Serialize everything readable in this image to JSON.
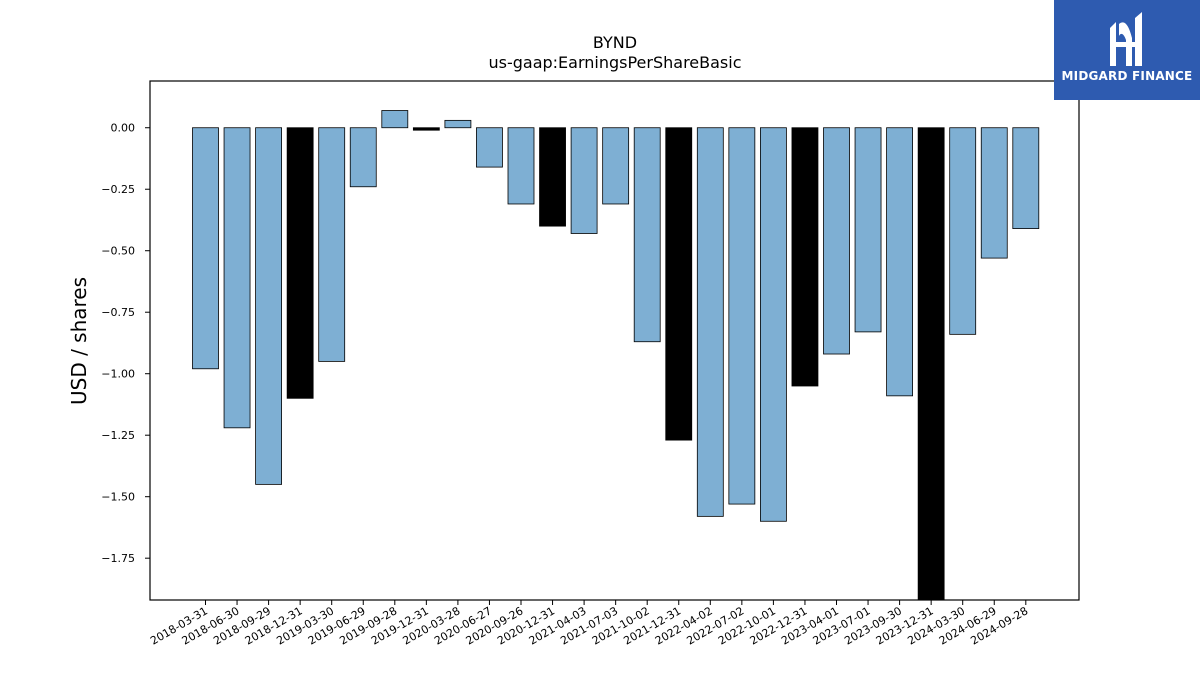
{
  "chart_data": {
    "type": "bar",
    "title": "BYND",
    "subtitle": "us-gaap:EarningsPerShareBasic",
    "xlabel": "",
    "ylabel": "USD / shares",
    "ylim": [
      -1.92,
      0.19
    ],
    "yticks": [
      0.0,
      -0.25,
      -0.5,
      -0.75,
      -1.0,
      -1.25,
      -1.5,
      -1.75
    ],
    "ytick_labels": [
      "0.00",
      "−0.25",
      "−0.50",
      "−0.75",
      "−1.00",
      "−1.25",
      "−1.50",
      "−1.75"
    ],
    "grid": false,
    "colors": {
      "quarter": "#7eafd3",
      "year_end": "#000000",
      "edge": "#000000"
    },
    "categories": [
      "2018-03-31",
      "2018-06-30",
      "2018-09-29",
      "2018-12-31",
      "2019-03-30",
      "2019-06-29",
      "2019-09-28",
      "2019-12-31",
      "2020-03-28",
      "2020-06-27",
      "2020-09-26",
      "2020-12-31",
      "2021-04-03",
      "2021-07-03",
      "2021-10-02",
      "2021-12-31",
      "2022-04-02",
      "2022-07-02",
      "2022-10-01",
      "2022-12-31",
      "2023-04-01",
      "2023-07-01",
      "2023-09-30",
      "2023-12-31",
      "2024-03-30",
      "2024-06-29",
      "2024-09-28"
    ],
    "values": [
      -0.98,
      -1.22,
      -1.45,
      -1.1,
      -0.95,
      -0.24,
      0.07,
      -0.01,
      0.03,
      -0.16,
      -0.31,
      -0.4,
      -0.43,
      -0.31,
      -0.87,
      -1.27,
      -1.58,
      -1.53,
      -1.6,
      -1.05,
      -0.92,
      -0.83,
      -1.09,
      -1.92,
      -0.84,
      -0.53,
      -0.41
    ],
    "highlight": [
      false,
      false,
      false,
      true,
      false,
      false,
      false,
      true,
      false,
      false,
      false,
      true,
      false,
      false,
      false,
      true,
      false,
      false,
      false,
      true,
      false,
      false,
      false,
      true,
      false,
      false,
      false
    ]
  },
  "logo": {
    "text": "MIDGARD FINANCE",
    "color": "#2e5bb0"
  }
}
